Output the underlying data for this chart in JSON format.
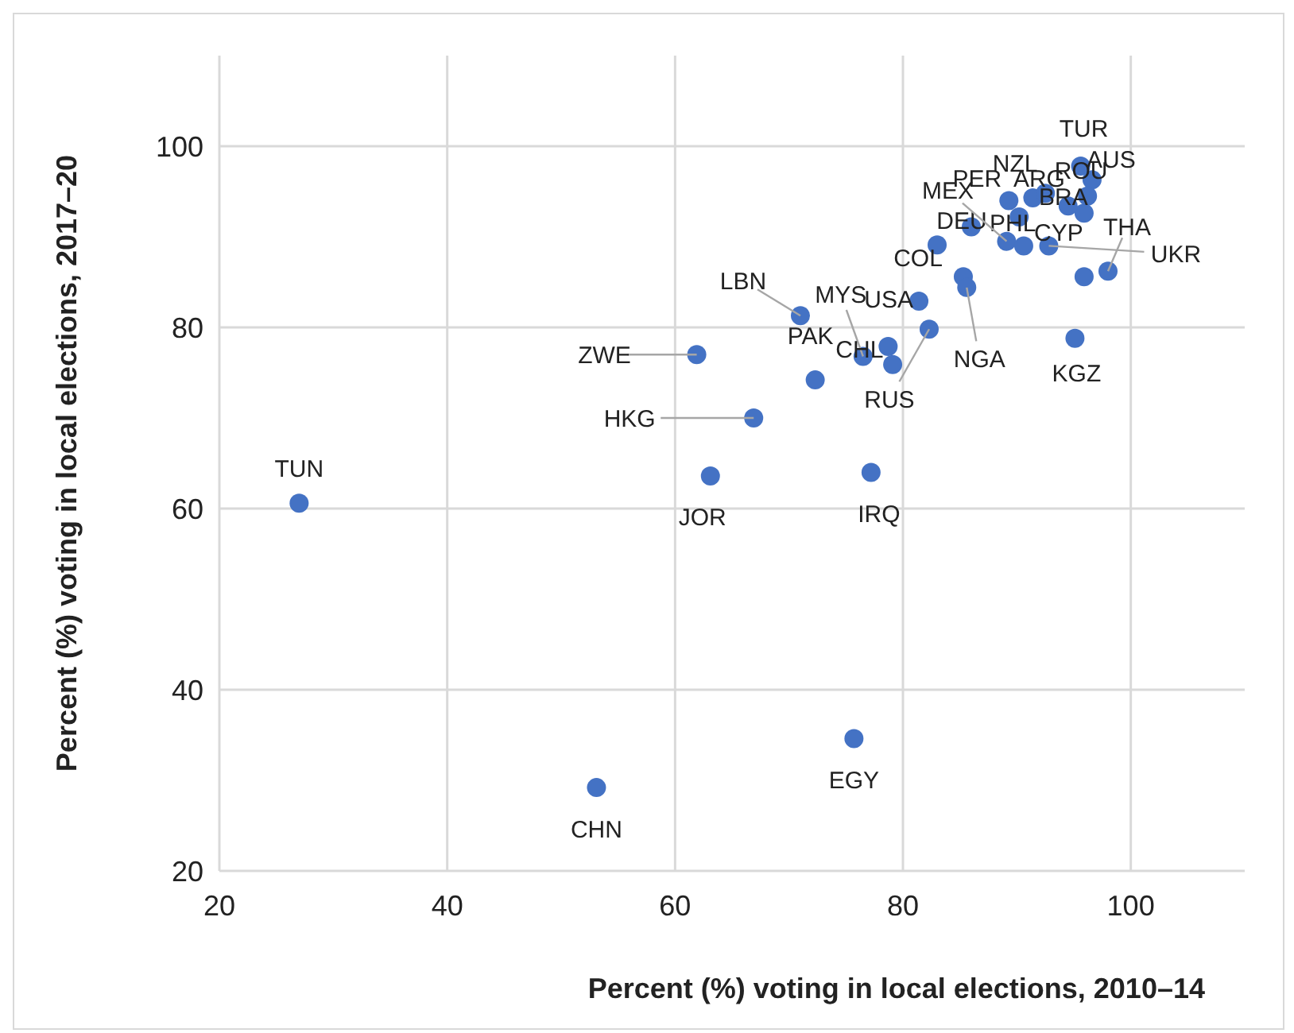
{
  "chart_data": {
    "type": "scatter",
    "xlabel": "Percent (%) voting in local elections, 2010–14",
    "ylabel": "Percent (%) voting in local elections,  2017–20",
    "xlim": [
      20,
      110
    ],
    "ylim": [
      20,
      110
    ],
    "xticks": [
      20,
      40,
      60,
      80,
      100
    ],
    "yticks": [
      20,
      40,
      60,
      80,
      100
    ],
    "grid": true,
    "marker": "circle",
    "series": [
      {
        "color": "#4472c4",
        "x": [
          27.0,
          53.1,
          75.7,
          63.1,
          77.2,
          66.9,
          61.9,
          71.0,
          72.3,
          76.5,
          78.7,
          79.1,
          82.3,
          81.4,
          85.3,
          85.6,
          83.0,
          86.0,
          89.1,
          90.6,
          92.8,
          95.9,
          98.0,
          95.1,
          95.9,
          94.5,
          90.2,
          89.3,
          91.4,
          95.6,
          96.6,
          96.2,
          92.5
        ],
        "values": [
          60.6,
          29.2,
          34.6,
          63.6,
          64.0,
          70.0,
          77.0,
          81.3,
          74.2,
          76.8,
          77.9,
          75.9,
          79.8,
          82.9,
          85.6,
          84.4,
          89.1,
          91.1,
          89.5,
          89.0,
          89.0,
          85.6,
          86.2,
          78.8,
          92.6,
          93.4,
          92.2,
          94.0,
          94.3,
          97.8,
          96.3,
          94.5,
          94.8
        ]
      }
    ],
    "annotations": [
      {
        "text": "TUN",
        "x": 27.0,
        "y": 60.6
      },
      {
        "text": "CHN",
        "x": 53.1,
        "y": 29.2
      },
      {
        "text": "EGY",
        "x": 75.7,
        "y": 34.6
      },
      {
        "text": "JOR",
        "x": 63.1,
        "y": 63.6
      },
      {
        "text": "IRQ",
        "x": 77.2,
        "y": 64.0
      },
      {
        "text": "HKG",
        "x": 66.9,
        "y": 70.0
      },
      {
        "text": "ZWE",
        "x": 61.9,
        "y": 77.0
      },
      {
        "text": "LBN",
        "x": 71.0,
        "y": 81.3
      },
      {
        "text": "PAK",
        "x": 72.3,
        "y": 74.2
      },
      {
        "text": "MYS",
        "x": 76.5,
        "y": 76.8
      },
      {
        "text": "CHL",
        "x": 78.7,
        "y": 77.9
      },
      {
        "text": "RUS",
        "x": 82.3,
        "y": 79.8
      },
      {
        "text": "USA",
        "x": 81.4,
        "y": 82.9
      },
      {
        "text": "NGA",
        "x": 85.6,
        "y": 84.4
      },
      {
        "text": "COL",
        "x": 83.0,
        "y": 89.1
      },
      {
        "text": "DEU",
        "x": 86.0,
        "y": 91.1
      },
      {
        "text": "UKR",
        "x": 92.8,
        "y": 89.0
      },
      {
        "text": "THA",
        "x": 98.0,
        "y": 86.2
      },
      {
        "text": "CYP",
        "x": 95.9,
        "y": 92.6
      },
      {
        "text": "KGZ",
        "x": 95.1,
        "y": 78.8
      },
      {
        "text": "BRA",
        "x": 94.5,
        "y": 93.4
      },
      {
        "text": "PHL",
        "x": 90.2,
        "y": 92.2
      },
      {
        "text": "ARG",
        "x": 91.4,
        "y": 94.3
      },
      {
        "text": "TUR",
        "x": 95.6,
        "y": 97.8
      },
      {
        "text": "AUS",
        "x": 96.6,
        "y": 96.3
      },
      {
        "text": "ROU",
        "x": 96.2,
        "y": 94.5
      },
      {
        "text": "NZL",
        "x": 92.5,
        "y": 94.8
      },
      {
        "text": "PER",
        "x": 89.3,
        "y": 94.0
      },
      {
        "text": "MEX",
        "x": 89.1,
        "y": 89.5
      }
    ]
  }
}
